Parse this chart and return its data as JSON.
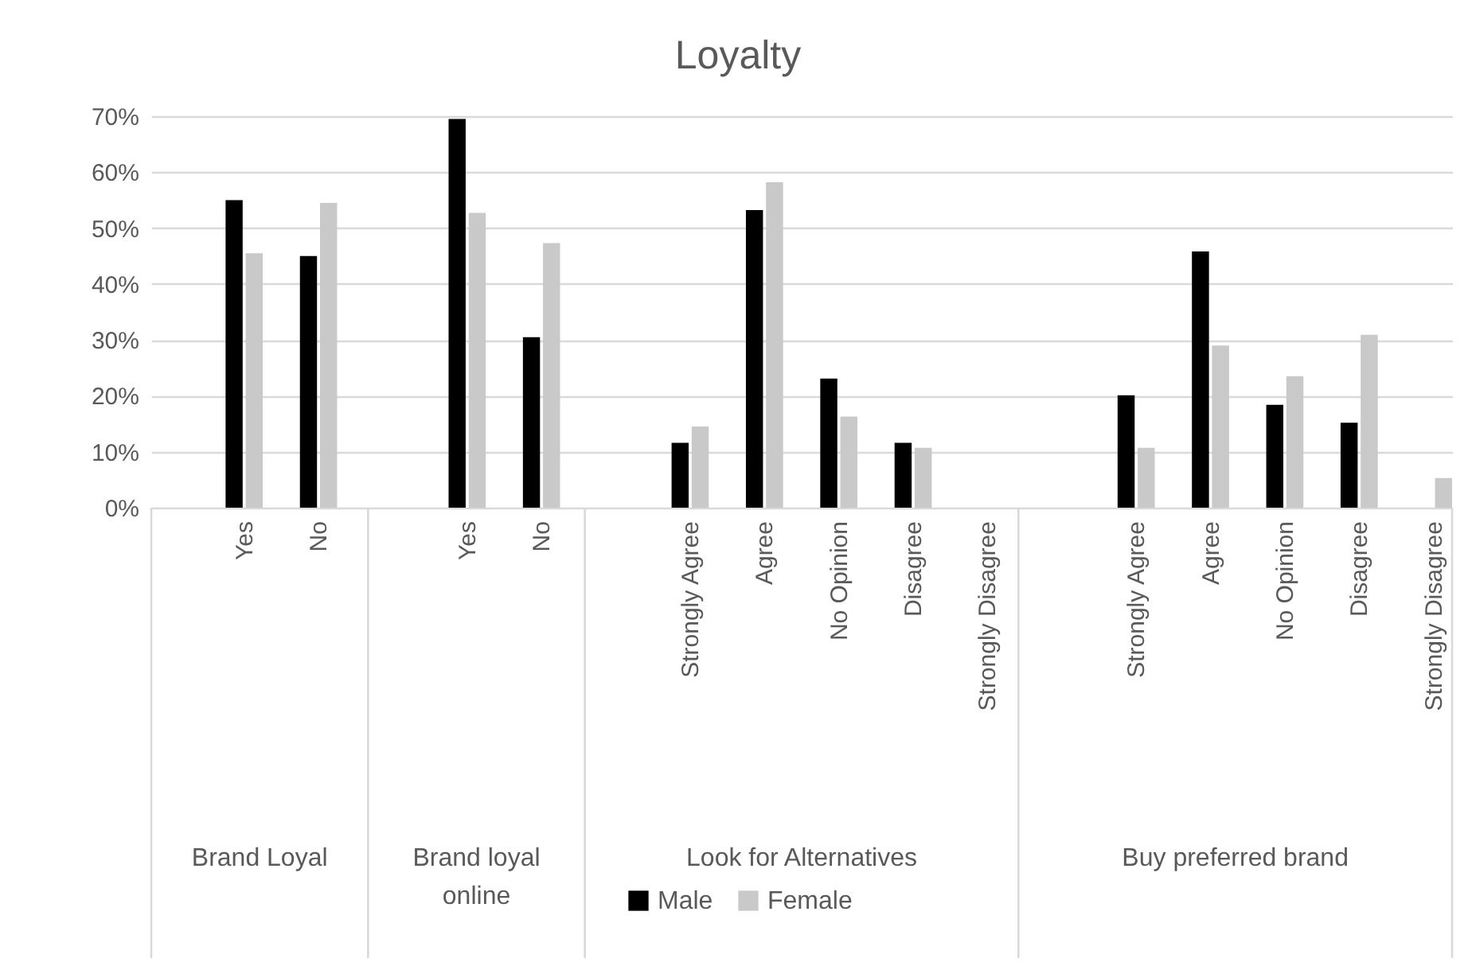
{
  "chart_data": {
    "type": "bar",
    "title": "Loyalty",
    "categories": [
      null,
      "Yes",
      "No",
      null,
      "Yes",
      "No",
      null,
      "Strongly Agree",
      "Agree",
      "No Opinion",
      "Disagree",
      "Strongly Disagree",
      null,
      "Strongly Agree",
      "Agree",
      "No Opinion",
      "Disagree",
      "Strongly Disagree"
    ],
    "series": [
      {
        "name": "Male",
        "color": "#000000",
        "values": [
          null,
          55,
          45,
          null,
          69.5,
          30.5,
          null,
          11.6,
          53.2,
          23.1,
          11.6,
          0,
          null,
          20.1,
          45.8,
          18.4,
          15.2,
          0
        ]
      },
      {
        "name": "Female",
        "color": "#c9c9c9",
        "values": [
          null,
          45.5,
          54.5,
          null,
          52.7,
          47.3,
          null,
          14.5,
          58.2,
          16.3,
          10.7,
          0,
          null,
          10.7,
          29,
          23.5,
          30.9,
          5.3
        ]
      }
    ],
    "annotations": [
      "Brand Loyal",
      "Brand loyal\nonline",
      "Look for Alternatives",
      "Buy preferred brand"
    ],
    "ylim": [
      0,
      70
    ],
    "yticks": [
      {
        "value": 0,
        "label": "0%"
      },
      {
        "value": 10,
        "label": "10%"
      },
      {
        "value": 20,
        "label": "20%"
      },
      {
        "value": 30,
        "label": "30%"
      },
      {
        "value": 40,
        "label": "40%"
      },
      {
        "value": 50,
        "label": "50%"
      },
      {
        "value": 60,
        "label": "60%"
      },
      {
        "value": 70,
        "label": "70%"
      }
    ],
    "grid": "y",
    "legend": "bottom"
  }
}
